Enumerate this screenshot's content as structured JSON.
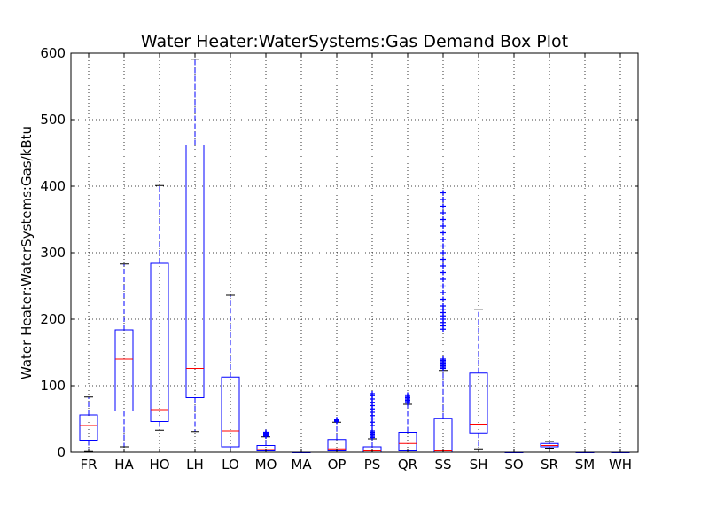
{
  "chart_data": {
    "type": "box",
    "title": "Water Heater:WaterSystems:Gas Demand Box Plot",
    "xlabel": "",
    "ylabel": "Water Heater:WaterSystems:Gas/kBtu",
    "ylim": [
      0,
      600
    ],
    "yticks": [
      0,
      100,
      200,
      300,
      400,
      500,
      600
    ],
    "grid": true,
    "colors": {
      "box": "#0000ff",
      "median": "#ff0000",
      "cap": "#000000",
      "grid": "#000000"
    },
    "categories": [
      "FR",
      "HA",
      "HO",
      "LH",
      "LO",
      "MO",
      "MA",
      "OP",
      "PS",
      "QR",
      "SS",
      "SH",
      "SO",
      "SR",
      "SM",
      "WH"
    ],
    "boxes": [
      {
        "label": "FR",
        "whislo": 1,
        "q1": 18,
        "med": 40,
        "q3": 56,
        "whishi": 83,
        "fliers": []
      },
      {
        "label": "HA",
        "whislo": 8,
        "q1": 62,
        "med": 140,
        "q3": 184,
        "whishi": 283,
        "fliers": []
      },
      {
        "label": "HO",
        "whislo": 33,
        "q1": 46,
        "med": 64,
        "q3": 284,
        "whishi": 401,
        "fliers": []
      },
      {
        "label": "LH",
        "whislo": 31,
        "q1": 82,
        "med": 126,
        "q3": 462,
        "whishi": 591,
        "fliers": []
      },
      {
        "label": "LO",
        "whislo": 0,
        "q1": 8,
        "med": 32,
        "q3": 113,
        "whishi": 236,
        "fliers": []
      },
      {
        "label": "MO",
        "whislo": 0,
        "q1": 2,
        "med": 4,
        "q3": 10,
        "whishi": 23,
        "fliers": [
          24,
          25,
          26,
          27,
          28,
          29,
          30
        ]
      },
      {
        "label": "MA",
        "whislo": 0,
        "q1": 0,
        "med": 0,
        "q3": 0,
        "whishi": 0,
        "fliers": []
      },
      {
        "label": "OP",
        "whislo": 0,
        "q1": 2,
        "med": 5,
        "q3": 19,
        "whishi": 45,
        "fliers": [
          46,
          47,
          48,
          49
        ]
      },
      {
        "label": "PS",
        "whislo": 0,
        "q1": 0,
        "med": 2,
        "q3": 8,
        "whishi": 20,
        "fliers": [
          22,
          24,
          26,
          28,
          30,
          32,
          40,
          45,
          50,
          55,
          60,
          65,
          70,
          75,
          80,
          85,
          88
        ]
      },
      {
        "label": "QR",
        "whislo": 0,
        "q1": 2,
        "med": 13,
        "q3": 30,
        "whishi": 72,
        "fliers": [
          74,
          76,
          78,
          80,
          82,
          84,
          86
        ]
      },
      {
        "label": "SS",
        "whislo": 0,
        "q1": 0,
        "med": 2,
        "q3": 51,
        "whishi": 123,
        "fliers": [
          126,
          128,
          130,
          132,
          134,
          136,
          138,
          140,
          185,
          190,
          195,
          200,
          205,
          210,
          215,
          220,
          230,
          240,
          250,
          260,
          270,
          280,
          290,
          300,
          310,
          320,
          330,
          340,
          350,
          360,
          370,
          380,
          390
        ]
      },
      {
        "label": "SH",
        "whislo": 5,
        "q1": 29,
        "med": 42,
        "q3": 119,
        "whishi": 215,
        "fliers": []
      },
      {
        "label": "SO",
        "whislo": 0,
        "q1": 0,
        "med": 0,
        "q3": 0,
        "whishi": 0,
        "fliers": []
      },
      {
        "label": "SR",
        "whislo": 6,
        "q1": 8,
        "med": 10,
        "q3": 13,
        "whishi": 16,
        "fliers": []
      },
      {
        "label": "SM",
        "whislo": 0,
        "q1": 0,
        "med": 0,
        "q3": 0,
        "whishi": 0,
        "fliers": []
      },
      {
        "label": "WH",
        "whislo": 0,
        "q1": 0,
        "med": 0,
        "q3": 0,
        "whishi": 0,
        "fliers": []
      }
    ]
  }
}
